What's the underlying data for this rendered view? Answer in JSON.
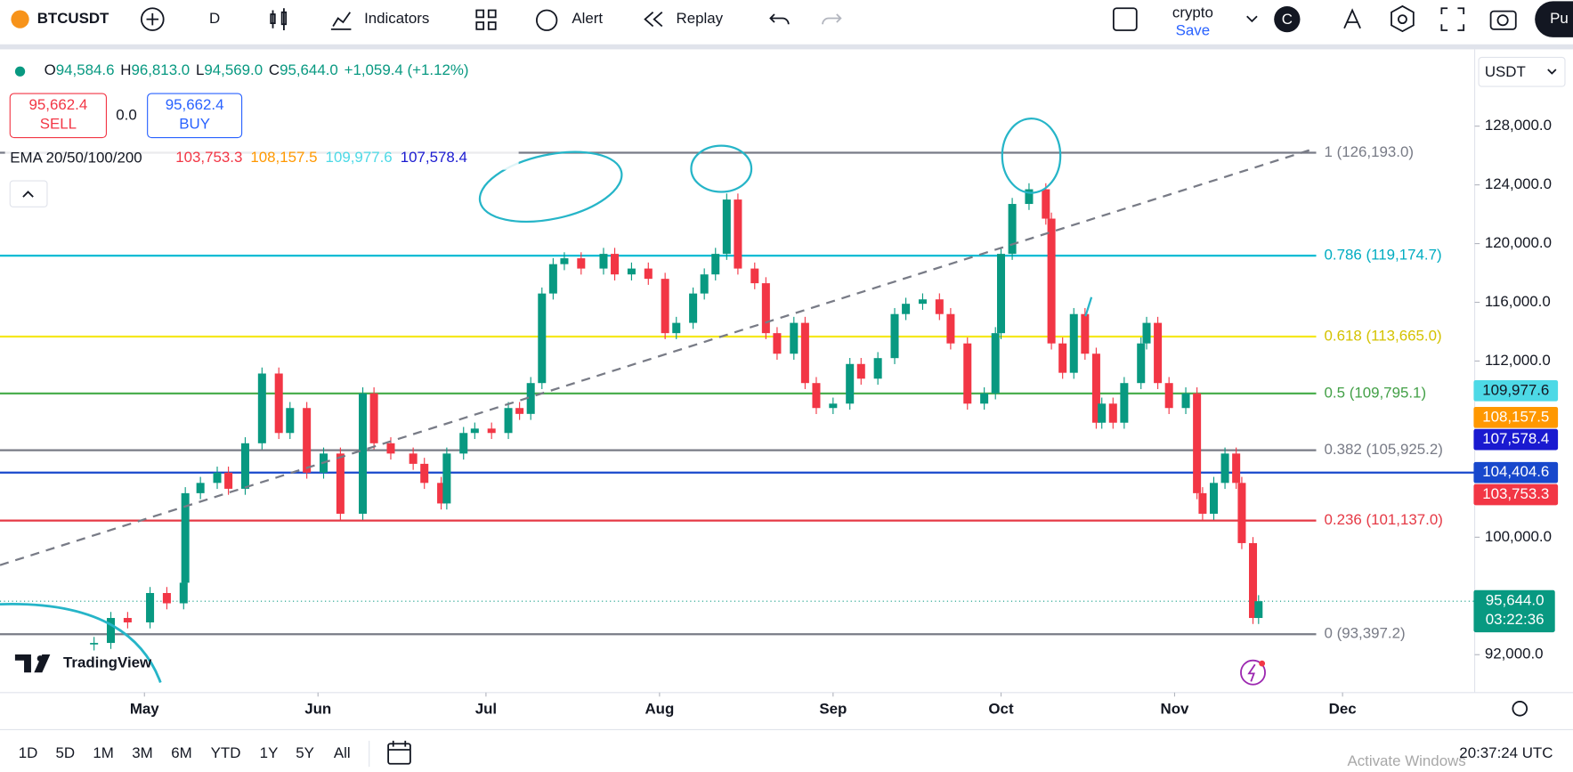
{
  "toolbar": {
    "symbol": "BTCUSDT",
    "interval": "D",
    "indicators": "Indicators",
    "alert": "Alert",
    "replay": "Replay",
    "layout_name": "crypto",
    "save": "Save",
    "avatar": "C",
    "publish": "Pu"
  },
  "legend": {
    "o_label": "O",
    "open": "94,584.6",
    "h_label": "H",
    "high": "96,813.0",
    "l_label": "L",
    "low": "94,569.0",
    "c_label": "C",
    "close": "95,644.0",
    "change": "+1,059.4 (+1.12%)"
  },
  "trade": {
    "sell_price": "95,662.4",
    "sell": "SELL",
    "spread": "0.0",
    "buy_price": "95,662.4",
    "buy": "BUY"
  },
  "ema": {
    "name": "EMA 20/50/100/200",
    "values": [
      "103,753.3",
      "108,157.5",
      "109,977.6",
      "107,578.4"
    ],
    "colors": [
      "#f23645",
      "#ff9800",
      "#4dd9e6",
      "#1a1ad0"
    ]
  },
  "branding": "TradingView",
  "chart_data": {
    "type": "candlestick",
    "currency": "USDT",
    "x": [
      -9,
      -6,
      -3,
      1,
      4,
      7,
      7.3,
      10,
      13,
      15,
      18,
      21,
      24,
      26,
      29,
      32,
      35,
      39,
      41,
      44,
      48,
      50,
      53,
      54,
      57,
      59,
      62,
      65,
      67,
      69,
      71,
      73,
      75,
      78,
      82,
      84,
      87,
      90,
      93,
      95,
      98,
      100,
      102,
      104,
      106,
      109,
      111,
      113,
      116,
      118,
      120,
      123,
      126,
      128,
      131,
      134,
      136,
      139,
      142,
      144,
      147,
      150,
      152,
      153,
      155,
      158,
      161,
      162,
      164,
      166,
      168,
      170,
      171,
      173,
      175,
      178,
      179,
      181,
      183,
      186,
      188,
      189,
      191,
      193,
      195,
      196,
      198,
      199
    ],
    "values": [
      92800,
      94500,
      94200,
      96200,
      95500,
      96900,
      103000,
      103700,
      104400,
      103300,
      106400,
      111150,
      107100,
      108800,
      104400,
      105700,
      101600,
      109800,
      106400,
      105700,
      105000,
      103700,
      102300,
      105700,
      107100,
      107400,
      107100,
      108800,
      108400,
      110500,
      116600,
      118600,
      119000,
      118300,
      119300,
      117900,
      118300,
      117600,
      113900,
      114600,
      116600,
      117900,
      119300,
      123000,
      118300,
      117300,
      113900,
      112500,
      114600,
      110500,
      108800,
      109100,
      111800,
      110800,
      112200,
      115200,
      115900,
      116200,
      115200,
      113200,
      109100,
      109800,
      113900,
      119300,
      122700,
      123700,
      121700,
      113200,
      111200,
      115200,
      112500,
      107800,
      109100,
      107800,
      110500,
      113200,
      114600,
      110500,
      108800,
      109800,
      103000,
      101600,
      103700,
      105700,
      103700,
      99600,
      94500,
      95644
    ],
    "color_up": "#089981",
    "color_down": "#f23645",
    "xlim": [
      -25.8,
      237.6
    ],
    "ylim": [
      89421,
      133230
    ],
    "xticks": [
      {
        "value": 0,
        "label": "May"
      },
      {
        "value": 31,
        "label": "Jun"
      },
      {
        "value": 61,
        "label": "Jul"
      },
      {
        "value": 92,
        "label": "Aug"
      },
      {
        "value": 123,
        "label": "Sep"
      },
      {
        "value": 153,
        "label": "Oct"
      },
      {
        "value": 184,
        "label": "Nov"
      },
      {
        "value": 214,
        "label": "Dec"
      }
    ],
    "yticks": [
      {
        "value": 92000,
        "label": "92,000.0"
      },
      {
        "value": 100000,
        "label": "100,000.0"
      },
      {
        "value": 112000,
        "label": "112,000.0"
      },
      {
        "value": 116000,
        "label": "116,000.0"
      },
      {
        "value": 120000,
        "label": "120,000.0"
      },
      {
        "value": 124000,
        "label": "124,000.0"
      },
      {
        "value": 128000,
        "label": "128,000.0"
      }
    ],
    "levels": [
      {
        "label": "1 (126,193.0)",
        "value": 126193,
        "color": "#787b86",
        "text_color": "#787b86"
      },
      {
        "label": "0.786 (119,174.7)",
        "value": 119174.7,
        "color": "#00bcd4",
        "text_color": "#00acc1"
      },
      {
        "label": "0.618 (113,665.0)",
        "value": 113665,
        "color": "#f5e81d",
        "text_color": "#d4c200"
      },
      {
        "label": "0.5 (109,795.1)",
        "value": 109795.1,
        "color": "#4caf50",
        "text_color": "#43a047"
      },
      {
        "label": "0.382 (105,925.2)",
        "value": 105925.2,
        "color": "#787b86",
        "text_color": "#787b86"
      },
      {
        "label": "0.236 (101,137.0)",
        "value": 101137,
        "color": "#e53945",
        "text_color": "#e53945"
      },
      {
        "label": "0 (93,397.2)",
        "value": 93397.2,
        "color": "#787b86",
        "text_color": "#787b86"
      }
    ],
    "horizontal_line": {
      "value": 104404.6,
      "color": "#1848cc"
    },
    "price_tags": [
      {
        "value": 109977.6,
        "label": "109,977.6",
        "color": "#4dd9e6",
        "text_color": "#131722"
      },
      {
        "value": 108157.5,
        "label": "108,157.5",
        "color": "#ff9800",
        "text_color": "#ffffff"
      },
      {
        "value": 107578.4,
        "label": "107,578.4",
        "color": "#1a1ad0",
        "text_color": "#ffffff"
      },
      {
        "value": 104404.6,
        "label": "104,404.6",
        "color": "#1848cc",
        "text_color": "#ffffff"
      },
      {
        "value": 103753.3,
        "label": "103,753.3",
        "color": "#f23645",
        "text_color": "#ffffff"
      }
    ],
    "last_price": {
      "value": 95644,
      "label": "95,644.0",
      "color": "#089981"
    },
    "countdown": "03:22:36"
  },
  "bottom": {
    "ranges": [
      "1D",
      "5D",
      "1M",
      "3M",
      "6M",
      "YTD",
      "1Y",
      "5Y",
      "All"
    ],
    "clock": "20:37:24 UTC",
    "watermark": "Activate Windows"
  }
}
